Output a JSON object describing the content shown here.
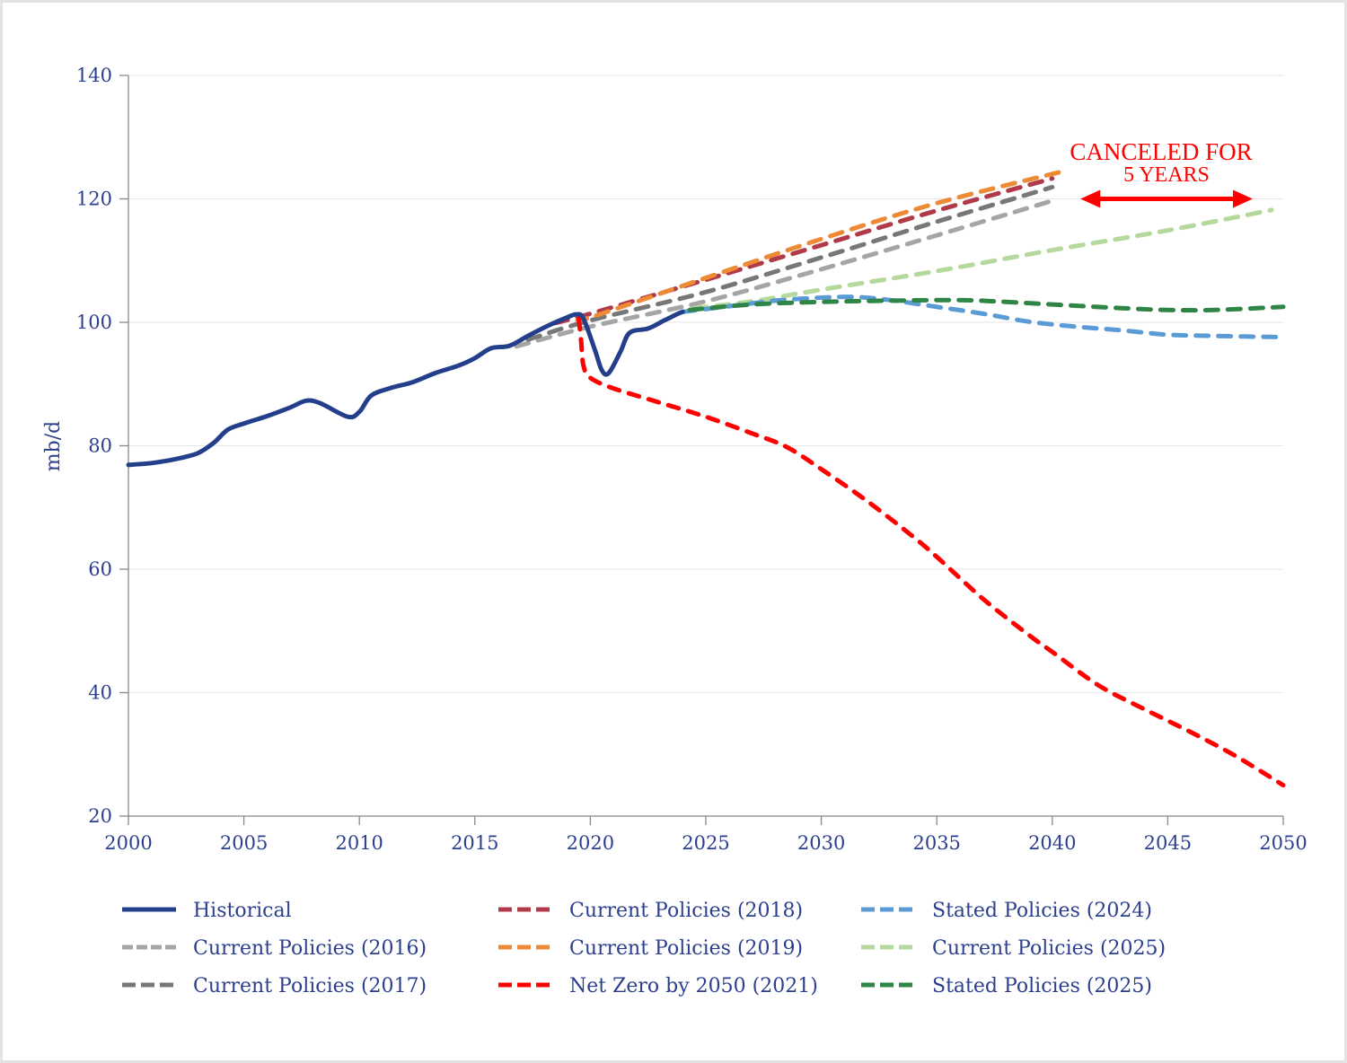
{
  "chart_data": {
    "type": "line",
    "title": "",
    "xlabel": "",
    "ylabel": "mb/d",
    "xlim": [
      2000,
      2050
    ],
    "ylim": [
      20,
      140
    ],
    "x_ticks": [
      2000,
      2005,
      2010,
      2015,
      2020,
      2025,
      2030,
      2035,
      2040,
      2045,
      2050
    ],
    "y_ticks": [
      20,
      40,
      60,
      80,
      100,
      120,
      140
    ],
    "grid": "horizontal",
    "legend_position": "bottom",
    "series": [
      {
        "key": "historical",
        "name": "Historical",
        "color": "#233e8b",
        "style": "solid",
        "points": [
          [
            2000,
            76.9
          ],
          [
            2001,
            77.2
          ],
          [
            2002,
            77.8
          ],
          [
            2003,
            78.8
          ],
          [
            2003.7,
            80.5
          ],
          [
            2004.3,
            82.6
          ],
          [
            2005,
            83.6
          ],
          [
            2006,
            84.8
          ],
          [
            2007,
            86.2
          ],
          [
            2007.7,
            87.3
          ],
          [
            2008.3,
            86.9
          ],
          [
            2009.5,
            84.7
          ],
          [
            2010,
            85.5
          ],
          [
            2010.5,
            88.1
          ],
          [
            2011.3,
            89.3
          ],
          [
            2012.3,
            90.3
          ],
          [
            2013.3,
            91.8
          ],
          [
            2014.3,
            93
          ],
          [
            2015,
            94.2
          ],
          [
            2015.7,
            95.8
          ],
          [
            2016.5,
            96.2
          ],
          [
            2017.3,
            97.8
          ],
          [
            2018.2,
            99.5
          ],
          [
            2019,
            100.8
          ],
          [
            2019.4,
            101.3
          ],
          [
            2019.7,
            100.6
          ],
          [
            2020.2,
            95.5
          ],
          [
            2020.5,
            92.2
          ],
          [
            2020.8,
            91.8
          ],
          [
            2021.3,
            95.2
          ],
          [
            2021.7,
            98.3
          ],
          [
            2022.5,
            99.0
          ],
          [
            2023.2,
            100.3
          ],
          [
            2023.8,
            101.4
          ],
          [
            2024,
            101.7
          ]
        ]
      },
      {
        "key": "cp2016",
        "name": "Current Policies (2016)",
        "color": "#a5a5a5",
        "style": "dashed",
        "points": [
          [
            2016.8,
            96.1
          ],
          [
            2020,
            99.3
          ],
          [
            2025,
            103.4
          ],
          [
            2030,
            108.6
          ],
          [
            2035,
            114.1
          ],
          [
            2040,
            119.7
          ]
        ]
      },
      {
        "key": "cp2017",
        "name": "Current Policies (2017)",
        "color": "#777777",
        "style": "dashed",
        "points": [
          [
            2017.3,
            97.2
          ],
          [
            2020,
            100.3
          ],
          [
            2025,
            104.9
          ],
          [
            2030,
            110.5
          ],
          [
            2035,
            116.3
          ],
          [
            2040,
            121.9
          ]
        ]
      },
      {
        "key": "cp2018",
        "name": "Current Policies (2018)",
        "color": "#b03a48",
        "style": "dashed",
        "points": [
          [
            2018.5,
            99.9
          ],
          [
            2020,
            101.4
          ],
          [
            2025,
            106.9
          ],
          [
            2030,
            112.5
          ],
          [
            2035,
            118.1
          ],
          [
            2040,
            123.3
          ]
        ]
      },
      {
        "key": "cp2019",
        "name": "Current Policies (2019)",
        "color": "#ed8a35",
        "style": "dashed",
        "points": [
          [
            2019.5,
            100.6
          ],
          [
            2020,
            100.8
          ],
          [
            2025,
            107.2
          ],
          [
            2030,
            113.5
          ],
          [
            2035,
            119.3
          ],
          [
            2040.5,
            124.5
          ]
        ]
      },
      {
        "key": "nz2021",
        "name": "Net Zero by 2050 (2021)",
        "color": "#ff0000",
        "style": "dashed",
        "points": [
          [
            2019.5,
            100.6
          ],
          [
            2019.6,
            97
          ],
          [
            2019.7,
            93
          ],
          [
            2020,
            91
          ],
          [
            2021,
            89.3
          ],
          [
            2023,
            87.0
          ],
          [
            2025,
            84.7
          ],
          [
            2027,
            82.0
          ],
          [
            2028.5,
            79.8
          ],
          [
            2030,
            76.2
          ],
          [
            2032,
            71.0
          ],
          [
            2034,
            65.2
          ],
          [
            2035,
            62.0
          ],
          [
            2037,
            55.2
          ],
          [
            2039,
            49.3
          ],
          [
            2040,
            46.6
          ],
          [
            2042,
            41.2
          ],
          [
            2044,
            37.3
          ],
          [
            2046,
            33.6
          ],
          [
            2048,
            29.6
          ],
          [
            2050,
            25.0
          ]
        ]
      },
      {
        "key": "sp2024",
        "name": "Stated Policies (2024)",
        "color": "#5b9bd5",
        "style": "dashed",
        "points": [
          [
            2024,
            101.7
          ],
          [
            2026,
            102.6
          ],
          [
            2028,
            103.5
          ],
          [
            2030,
            104.0
          ],
          [
            2031.5,
            104.1
          ],
          [
            2033,
            103.6
          ],
          [
            2035,
            102.5
          ],
          [
            2037,
            101.4
          ],
          [
            2039,
            100.1
          ],
          [
            2041,
            99.3
          ],
          [
            2043,
            98.7
          ],
          [
            2045,
            98.0
          ],
          [
            2047,
            97.8
          ],
          [
            2050,
            97.6
          ]
        ]
      },
      {
        "key": "cp2025",
        "name": "Current Policies (2025)",
        "color": "#b5d99c",
        "style": "dashed",
        "points": [
          [
            2024.5,
            102.3
          ],
          [
            2027,
            103.4
          ],
          [
            2030,
            105.3
          ],
          [
            2035,
            108.3
          ],
          [
            2040,
            111.7
          ],
          [
            2045,
            114.9
          ],
          [
            2049.5,
            118.2
          ]
        ]
      },
      {
        "key": "sp2025",
        "name": "Stated Policies (2025)",
        "color": "#2e8545",
        "style": "dashed",
        "points": [
          [
            2024.3,
            102.0
          ],
          [
            2027,
            102.9
          ],
          [
            2030,
            103.3
          ],
          [
            2033,
            103.5
          ],
          [
            2036,
            103.6
          ],
          [
            2038,
            103.3
          ],
          [
            2040,
            102.9
          ],
          [
            2043,
            102.3
          ],
          [
            2045,
            102.0
          ],
          [
            2047,
            102.0
          ],
          [
            2050,
            102.5
          ]
        ]
      }
    ],
    "annotations": [
      {
        "text_line1": "CANCELED FOR",
        "text_line2": "5 YEARS",
        "color": "#ff0000",
        "arrow_from_x": 2041.3,
        "arrow_to_x": 2048.6,
        "arrow_y": 120,
        "type": "double-arrow"
      }
    ]
  },
  "legend": {
    "items": [
      {
        "key": "historical",
        "label": "Historical"
      },
      {
        "key": "cp2016",
        "label": "Current Policies (2016)"
      },
      {
        "key": "cp2017",
        "label": "Current Policies (2017)"
      },
      {
        "key": "cp2018",
        "label": "Current Policies (2018)"
      },
      {
        "key": "cp2019",
        "label": "Current Policies (2019)"
      },
      {
        "key": "nz2021",
        "label": "Net Zero by 2050 (2021)"
      },
      {
        "key": "sp2024",
        "label": "Stated Policies (2024)"
      },
      {
        "key": "cp2025",
        "label": "Current Policies (2025)"
      },
      {
        "key": "sp2025",
        "label": "Stated Policies (2025)"
      }
    ]
  }
}
